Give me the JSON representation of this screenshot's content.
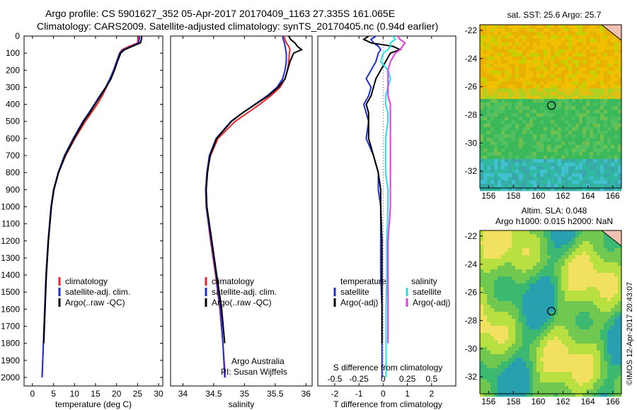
{
  "header": {
    "line1": "Argo profile: CS 5901627_352 05-Apr-2017 20170409_1163 27.335S 161.065E",
    "line2": "Climatology: CARS2009. Satellite-adjusted climatology: synTS_20170405.nc (0.94d earlier)"
  },
  "colors": {
    "climatology": "#e8242a",
    "satellite": "#1e2fd8",
    "argo": "#000000",
    "sat_salinity": "#22e0e6",
    "argo_salinity": "#e23ce0"
  },
  "chart_data": [
    {
      "type": "line",
      "name": "temperature",
      "xlabel": "temperature (deg C)",
      "ylabel": "",
      "xlim": [
        -2,
        31
      ],
      "ylim": [
        2050,
        0
      ],
      "x_ticks": [
        0,
        5,
        10,
        15,
        20,
        25,
        30
      ],
      "y_ticks": [
        0,
        100,
        200,
        300,
        400,
        500,
        600,
        700,
        800,
        900,
        1000,
        1100,
        1200,
        1300,
        1400,
        1500,
        1600,
        1700,
        1800,
        1900,
        2000
      ],
      "y": [
        0,
        20,
        40,
        60,
        80,
        100,
        150,
        200,
        250,
        300,
        350,
        400,
        450,
        500,
        600,
        700,
        800,
        900,
        1000,
        1200,
        1400,
        1600,
        1800,
        2000
      ],
      "series": [
        {
          "name": "climatology",
          "color": "#e8242a",
          "x": [
            25.2,
            25.1,
            25.0,
            23.0,
            21.3,
            20.7,
            20.0,
            19.3,
            18.5,
            17.6,
            16.6,
            15.4,
            14.0,
            12.6,
            10.1,
            7.9,
            6.2,
            5.1,
            4.5,
            3.8,
            3.3,
            2.9,
            2.6,
            2.3
          ]
        },
        {
          "name": "satellite-adj. clim.",
          "color": "#1e2fd8",
          "x": [
            25.5,
            25.4,
            25.3,
            23.5,
            21.6,
            20.8,
            20.0,
            19.3,
            18.4,
            17.4,
            16.0,
            14.7,
            13.4,
            12.0,
            9.7,
            7.6,
            6.1,
            5.0,
            4.4,
            3.7,
            3.2,
            2.9,
            2.6,
            2.3
          ]
        },
        {
          "name": "Argo(..raw -QC)",
          "color": "#000000",
          "x": [
            26.0,
            25.9,
            25.7,
            23.8,
            21.9,
            21.0,
            20.2,
            19.5,
            18.7,
            17.5,
            16.2,
            14.9,
            13.6,
            12.2,
            9.9,
            7.8,
            6.2,
            5.1,
            4.5,
            3.8,
            3.3,
            3.0,
            2.7
          ]
        }
      ],
      "legend": [
        "climatology",
        "satellite-adj. clim.",
        "Argo(..raw -QC)"
      ]
    },
    {
      "type": "line",
      "name": "salinity",
      "xlabel": "salinity",
      "xlim": [
        33.8,
        36.1
      ],
      "ylim": [
        2050,
        0
      ],
      "x_ticks": [
        34,
        34.5,
        35,
        35.5,
        36
      ],
      "y": [
        0,
        20,
        40,
        60,
        80,
        100,
        150,
        200,
        250,
        300,
        350,
        400,
        450,
        500,
        600,
        700,
        800,
        900,
        1000,
        1200,
        1400,
        1600,
        1800,
        2000
      ],
      "series": [
        {
          "name": "climatology",
          "color": "#e8242a",
          "x": [
            35.64,
            35.66,
            35.68,
            35.72,
            35.74,
            35.73,
            35.72,
            35.7,
            35.66,
            35.58,
            35.43,
            35.25,
            35.05,
            34.85,
            34.57,
            34.45,
            34.39,
            34.37,
            34.38,
            34.45,
            34.53,
            34.6,
            34.65,
            34.69
          ]
        },
        {
          "name": "satellite-adj. clim.",
          "color": "#1e2fd8",
          "x": [
            35.62,
            35.63,
            35.65,
            35.66,
            35.67,
            35.68,
            35.68,
            35.66,
            35.62,
            35.53,
            35.37,
            35.17,
            34.97,
            34.78,
            34.54,
            34.43,
            34.39,
            34.37,
            34.38,
            34.46,
            34.54,
            34.61,
            34.65,
            34.68
          ]
        },
        {
          "name": "Argo(..raw -QC)",
          "color": "#000000",
          "x": [
            35.72,
            35.75,
            35.82,
            35.86,
            35.93,
            35.8,
            35.74,
            35.7,
            35.66,
            35.55,
            35.39,
            35.18,
            34.97,
            34.79,
            34.55,
            34.44,
            34.4,
            34.38,
            34.39,
            34.47,
            34.55,
            34.63,
            34.68
          ]
        }
      ],
      "legend": [
        "climatology",
        "satellite-adj. clim.",
        "Argo(..raw -QC)"
      ],
      "annotation": [
        "Argo Australia",
        "PI: Susan Wijffels"
      ]
    },
    {
      "type": "line",
      "name": "difference",
      "xlabel": "T difference from climatology",
      "xlabel_top": "S difference from climatology",
      "xlim": [
        -2.7,
        3.0
      ],
      "ylim": [
        2050,
        0
      ],
      "x_ticks": [
        -2,
        -1,
        0,
        1,
        2
      ],
      "s_ticks": [
        "-0.5",
        "-0.25",
        "0",
        "0.25",
        "0.5"
      ],
      "y": [
        0,
        20,
        40,
        60,
        80,
        100,
        150,
        200,
        250,
        300,
        350,
        400,
        450,
        500,
        600,
        700,
        800,
        900,
        1000,
        1200,
        1400,
        1600,
        1800,
        2000
      ],
      "series": [
        {
          "name": "temperature satellite",
          "color": "#1e2fd8",
          "x": [
            -0.3,
            -0.5,
            -0.4,
            -0.2,
            -0.1,
            -0.2,
            -0.3,
            -0.5,
            -0.7,
            -0.5,
            -0.6,
            -0.8,
            -0.7,
            -0.6,
            -0.7,
            -0.4,
            -0.2,
            -0.2,
            -0.1,
            -0.1,
            -0.1,
            -0.05,
            -0.05,
            -0.05
          ]
        },
        {
          "name": "temperature Argo(-adj)",
          "color": "#000000",
          "x": [
            -0.6,
            -0.8,
            -0.5,
            0.4,
            0.7,
            0.3,
            0.1,
            -0.1,
            -0.3,
            -0.4,
            -0.5,
            -0.7,
            -0.6,
            -0.6,
            -0.6,
            -0.4,
            -0.2,
            -0.1,
            -0.1,
            -0.05,
            -0.05,
            -0.05,
            -0.05
          ]
        },
        {
          "name": "salinity satellite",
          "color": "#22e0e6",
          "x": [
            0.4,
            0.5,
            0.3,
            0.3,
            0.2,
            0.0,
            -0.1,
            0.2,
            0.3,
            0.2,
            0.1,
            0.1,
            0.2,
            0.2,
            0.1,
            0.1,
            0.1,
            0.2,
            0.2,
            0.15,
            0.15,
            0.12,
            0.12,
            0.12
          ]
        },
        {
          "name": "salinity Argo(-adj)",
          "color": "#e23ce0",
          "x": [
            0.6,
            0.7,
            0.9,
            0.8,
            0.7,
            0.5,
            0.3,
            0.2,
            0.2,
            0.2,
            0.2,
            0.3,
            0.3,
            0.3,
            0.3,
            0.3,
            0.3,
            0.3,
            0.3,
            0.2,
            0.2,
            0.2,
            0.2
          ]
        }
      ],
      "legend_groups": [
        {
          "title": "temperature",
          "items": [
            {
              "label": "satellite",
              "color": "#1e2fd8"
            },
            {
              "label": "Argo(-adj)",
              "color": "#000000"
            }
          ]
        },
        {
          "title": "salinity",
          "items": [
            {
              "label": "satellite",
              "color": "#22e0e6"
            },
            {
              "label": "Argo(-adj)",
              "color": "#e23ce0"
            }
          ]
        }
      ]
    },
    {
      "type": "heatmap",
      "name": "sst-map",
      "title": "sat. SST: 25.6  Argo: 25.7",
      "x_ticks": [
        156,
        158,
        160,
        162,
        164,
        166
      ],
      "y_ticks": [
        -22,
        -24,
        -26,
        -28,
        -30,
        -32
      ],
      "xlim": [
        155.3,
        166.7
      ],
      "ylim": [
        -33.2,
        -21.6
      ],
      "marker": {
        "lon": 161.065,
        "lat": -27.335
      }
    },
    {
      "type": "heatmap",
      "name": "sla-map",
      "title": "Altim. SLA: 0.048",
      "subtitle": "Argo h1000: 0.015 h2000: NaN",
      "x_ticks": [
        156,
        158,
        160,
        162,
        164,
        166
      ],
      "y_ticks": [
        -22,
        -24,
        -26,
        -28,
        -30,
        -32
      ],
      "xlim": [
        155.3,
        166.7
      ],
      "ylim": [
        -33.2,
        -21.6
      ],
      "marker": {
        "lon": 161.065,
        "lat": -27.335
      }
    }
  ],
  "side_label": "©IMOS 12-Apr-2017 20:43:07"
}
